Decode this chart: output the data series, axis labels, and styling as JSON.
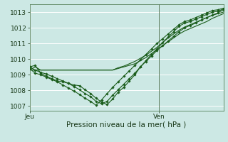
{
  "bg_color": "#cce8e4",
  "grid_color": "#b8d8d4",
  "line_color": "#1a5c1a",
  "marker_color": "#1a5c1a",
  "ylabel_ticks": [
    1007,
    1008,
    1009,
    1010,
    1011,
    1012,
    1013
  ],
  "ylim": [
    1006.7,
    1013.5
  ],
  "xlim": [
    0,
    36
  ],
  "xlabel": "Pression niveau de la mer( hPa )",
  "xtick_labels": [
    "Jeu",
    "Ven"
  ],
  "xtick_positions": [
    0,
    24
  ],
  "vline_x": 24,
  "series": [
    [
      1009.5,
      1009.6,
      1009.1,
      1008.9,
      1008.75,
      1008.6,
      1008.55,
      1008.45,
      1008.35,
      1008.3,
      1008.05,
      1007.8,
      1007.5,
      1007.25,
      1007.1,
      1007.45,
      1007.9,
      1008.2,
      1008.6,
      1009.0,
      1009.5,
      1009.9,
      1010.3,
      1010.65,
      1011.05,
      1011.4,
      1011.75,
      1012.1,
      1012.3,
      1012.4,
      1012.55,
      1012.7,
      1012.85,
      1013.0,
      1013.05,
      1013.2
    ],
    [
      1009.3,
      1009.3,
      1009.3,
      1009.3,
      1009.3,
      1009.3,
      1009.3,
      1009.3,
      1009.3,
      1009.3,
      1009.3,
      1009.3,
      1009.3,
      1009.3,
      1009.3,
      1009.3,
      1009.4,
      1009.5,
      1009.6,
      1009.7,
      1009.9,
      1010.1,
      1010.35,
      1010.6,
      1010.85,
      1011.1,
      1011.35,
      1011.6,
      1011.8,
      1011.95,
      1012.1,
      1012.25,
      1012.4,
      1012.6,
      1012.75,
      1012.9
    ],
    [
      1009.3,
      1009.5,
      1009.3,
      1009.3,
      1009.3,
      1009.3,
      1009.3,
      1009.3,
      1009.3,
      1009.3,
      1009.3,
      1009.3,
      1009.3,
      1009.3,
      1009.3,
      1009.3,
      1009.45,
      1009.55,
      1009.7,
      1009.85,
      1010.05,
      1010.25,
      1010.5,
      1010.75,
      1011.05,
      1011.35,
      1011.6,
      1011.85,
      1012.05,
      1012.2,
      1012.35,
      1012.5,
      1012.65,
      1012.8,
      1012.9,
      1013.0
    ],
    [
      1009.4,
      1009.1,
      1009.0,
      1008.85,
      1008.7,
      1008.55,
      1008.35,
      1008.15,
      1007.95,
      1007.75,
      1007.5,
      1007.3,
      1007.05,
      1007.4,
      1007.8,
      1008.2,
      1008.55,
      1008.9,
      1009.25,
      1009.6,
      1009.95,
      1010.3,
      1010.65,
      1011.0,
      1011.3,
      1011.6,
      1011.9,
      1012.2,
      1012.4,
      1012.5,
      1012.65,
      1012.8,
      1012.95,
      1013.1,
      1013.15,
      1013.25
    ],
    [
      1009.5,
      1009.3,
      1009.15,
      1009.05,
      1008.9,
      1008.75,
      1008.6,
      1008.45,
      1008.25,
      1008.05,
      1007.8,
      1007.6,
      1007.3,
      1007.15,
      1007.3,
      1007.7,
      1008.05,
      1008.4,
      1008.75,
      1009.1,
      1009.5,
      1009.85,
      1010.2,
      1010.55,
      1010.85,
      1011.15,
      1011.45,
      1011.75,
      1012.0,
      1012.15,
      1012.3,
      1012.5,
      1012.65,
      1012.8,
      1012.95,
      1013.15
    ]
  ],
  "tick_fontsize": 6.5,
  "xlabel_fontsize": 7.5
}
